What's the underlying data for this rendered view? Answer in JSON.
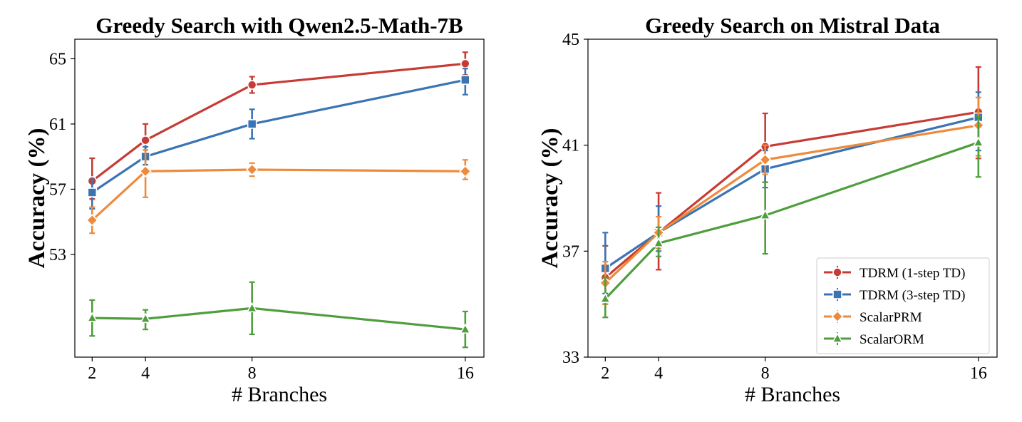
{
  "chart_data": [
    {
      "type": "line",
      "title": "Greedy Search with Qwen2.5-Math-7B",
      "xlabel": "# Branches",
      "ylabel": "Accuracy (%)",
      "x": [
        2,
        4,
        8,
        16
      ],
      "xlim": [
        1.35,
        16.7
      ],
      "ylim": [
        46.7,
        66.2
      ],
      "yticks": [
        53,
        57,
        61,
        65
      ],
      "xticks": [
        2,
        4,
        8,
        16
      ],
      "grid": false,
      "series": [
        {
          "name": "TDRM (1-step TD)",
          "color": "#c63c35",
          "marker": "circle",
          "values": [
            57.5,
            60.0,
            63.4,
            64.7
          ],
          "err_low": [
            56.4,
            59.0,
            62.9,
            64.0
          ],
          "err_high": [
            58.9,
            61.0,
            63.9,
            65.4
          ]
        },
        {
          "name": "TDRM (3-step TD)",
          "color": "#3a74b3",
          "marker": "square",
          "values": [
            56.8,
            59.0,
            61.0,
            63.7
          ],
          "err_low": [
            55.8,
            58.5,
            60.1,
            62.8
          ],
          "err_high": [
            57.6,
            59.6,
            61.9,
            64.4
          ]
        },
        {
          "name": "ScalarPRM",
          "color": "#ee8a3c",
          "marker": "diamond",
          "values": [
            55.1,
            58.1,
            58.2,
            58.1
          ],
          "err_low": [
            54.3,
            56.5,
            57.8,
            57.6
          ],
          "err_high": [
            55.9,
            59.4,
            58.6,
            58.8
          ]
        },
        {
          "name": "ScalarORM",
          "color": "#4f9e3d",
          "marker": "triangle",
          "values": [
            49.1,
            49.05,
            49.7,
            48.4
          ],
          "err_low": [
            48.0,
            48.4,
            48.1,
            47.3
          ],
          "err_high": [
            50.2,
            49.6,
            51.3,
            49.5
          ]
        }
      ]
    },
    {
      "type": "line",
      "title": "Greedy Search on Mistral Data",
      "xlabel": "# Branches",
      "ylabel": "Accuracy (%)",
      "x": [
        2,
        4,
        8,
        16
      ],
      "xlim": [
        1.35,
        16.7
      ],
      "ylim": [
        33,
        45
      ],
      "yticks": [
        33,
        37,
        41,
        45
      ],
      "xticks": [
        2,
        4,
        8,
        16
      ],
      "grid": false,
      "legend": "bottom-right",
      "series": [
        {
          "name": "TDRM (1-step TD)",
          "color": "#c63c35",
          "marker": "circle",
          "values": [
            36.0,
            37.7,
            40.95,
            42.25
          ],
          "err_low": [
            35.0,
            36.3,
            39.6,
            40.5
          ],
          "err_high": [
            37.2,
            39.2,
            42.2,
            43.95
          ]
        },
        {
          "name": "TDRM (3-step TD)",
          "color": "#3a74b3",
          "marker": "square",
          "values": [
            36.35,
            37.7,
            40.1,
            42.05
          ],
          "err_low": [
            35.4,
            37.0,
            39.4,
            40.8
          ],
          "err_high": [
            37.7,
            38.7,
            40.8,
            43.0
          ]
        },
        {
          "name": "ScalarPRM",
          "color": "#ee8a3c",
          "marker": "diamond",
          "values": [
            35.8,
            37.7,
            40.45,
            41.75
          ],
          "err_low": [
            35.0,
            37.1,
            39.9,
            40.6
          ],
          "err_high": [
            36.6,
            38.3,
            41.0,
            42.8
          ]
        },
        {
          "name": "ScalarORM",
          "color": "#4f9e3d",
          "marker": "triangle",
          "values": [
            35.2,
            37.3,
            38.35,
            41.1
          ],
          "err_low": [
            34.5,
            36.8,
            36.9,
            39.8
          ],
          "err_high": [
            36.0,
            37.9,
            39.6,
            42.1
          ]
        }
      ]
    }
  ]
}
